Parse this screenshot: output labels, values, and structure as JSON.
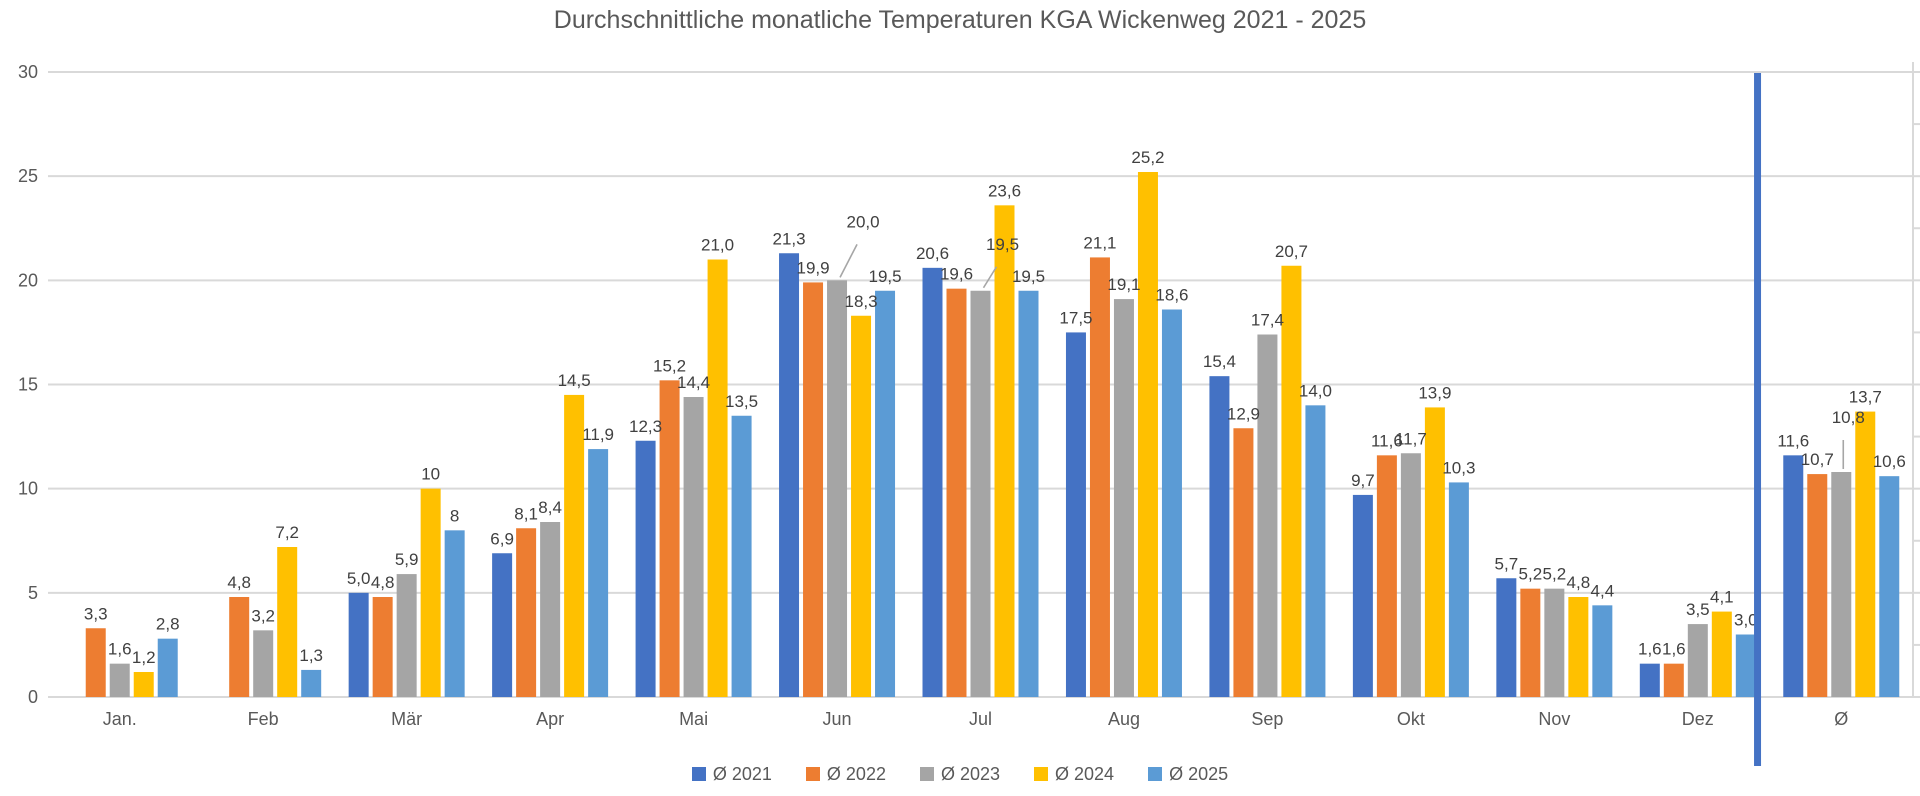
{
  "chart_data": {
    "type": "bar",
    "title": "Durchschnittliche monatliche Temperaturen KGA Wickenweg 2021 - 2025",
    "xlabel": "",
    "ylabel": "",
    "ylim": [
      0,
      30
    ],
    "y_ticks": [
      0,
      5,
      10,
      15,
      20,
      25,
      30
    ],
    "grid": true,
    "legend_position": "bottom",
    "categories": [
      "Jan.",
      "Feb",
      "Mär",
      "Apr",
      "Mai",
      "Jun",
      "Jul",
      "Aug",
      "Sep",
      "Okt",
      "Nov",
      "Dez",
      "Ø"
    ],
    "series": [
      {
        "name": "Ø 2021",
        "color": "#4472C4",
        "values": [
          null,
          null,
          5.0,
          6.9,
          12.3,
          21.3,
          20.6,
          17.5,
          15.4,
          9.7,
          5.7,
          1.6,
          11.6
        ],
        "labels": [
          "",
          "",
          "5,0",
          "6,9",
          "12,3",
          "21,3",
          "20,6",
          "17,5",
          "15,4",
          "9,7",
          "5,7",
          "1,6",
          "11,6"
        ]
      },
      {
        "name": "Ø 2022",
        "color": "#ED7D31",
        "values": [
          3.3,
          4.8,
          4.8,
          8.1,
          15.2,
          19.9,
          19.6,
          21.1,
          12.9,
          11.6,
          5.2,
          1.6,
          10.7
        ],
        "labels": [
          "3,3",
          "4,8",
          "4,8",
          "8,1",
          "15,2",
          "19,9",
          "19,6",
          "21,1",
          "12,9",
          "11,6",
          "5,2",
          "1,6",
          "10,7"
        ]
      },
      {
        "name": "Ø 2023",
        "color": "#A5A5A5",
        "values": [
          1.6,
          3.2,
          5.9,
          8.4,
          14.4,
          20.0,
          19.5,
          19.1,
          17.4,
          11.7,
          5.2,
          3.5,
          10.8
        ],
        "labels": [
          "1,6",
          "3,2",
          "5,9",
          "8,4",
          "14,4",
          "20,0",
          "19,5",
          "19,1",
          "17,4",
          "11,7",
          "5,2",
          "3,5",
          "10,8"
        ]
      },
      {
        "name": "Ø 2024",
        "color": "#FFC000",
        "values": [
          1.2,
          7.2,
          10,
          14.5,
          21.0,
          18.3,
          23.6,
          25.2,
          20.7,
          13.9,
          4.8,
          4.1,
          13.7
        ],
        "labels": [
          "1,2",
          "7,2",
          "10",
          "14,5",
          "21,0",
          "18,3",
          "23,6",
          "25,2",
          "20,7",
          "13,9",
          "4,8",
          "4,1",
          "13,7"
        ]
      },
      {
        "name": "Ø 2025",
        "color": "#5B9BD5",
        "values": [
          2.8,
          1.3,
          8,
          11.9,
          13.5,
          19.5,
          19.5,
          18.6,
          14.0,
          10.3,
          4.4,
          3.0,
          10.6
        ],
        "labels": [
          "2,8",
          "1,3",
          "8",
          "11,9",
          "13,5",
          "19,5",
          "19,5",
          "18,6",
          "14,0",
          "10,3",
          "4,4",
          "3,0",
          "10,6"
        ]
      }
    ],
    "separator": {
      "color": "#4472C4",
      "after_category": "Dez"
    },
    "colors": {
      "grid": "#D9D9D9",
      "axis_text": "#595959",
      "label_text": "#404040",
      "leader_line": "#A6A6A6"
    }
  }
}
